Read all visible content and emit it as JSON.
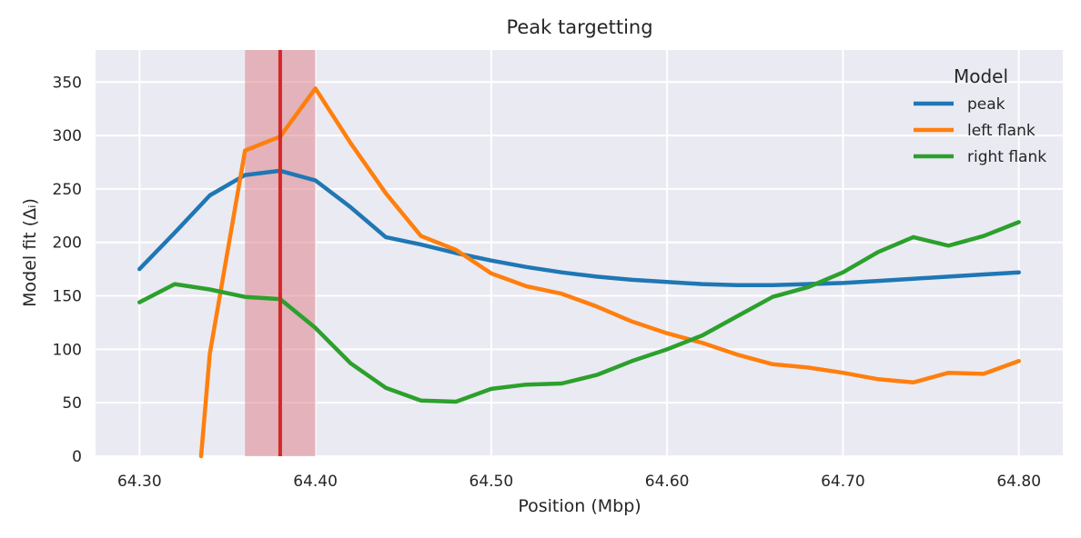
{
  "chart_data": {
    "type": "line",
    "title": "Peak targetting",
    "xlabel": "Position (Mbp)",
    "ylabel": "Model fit (Δᵢ)",
    "xlim": [
      64.275,
      64.825
    ],
    "ylim": [
      0,
      380
    ],
    "xticks": [
      64.3,
      64.4,
      64.5,
      64.6,
      64.7,
      64.8
    ],
    "xtick_labels": [
      "64.30",
      "64.40",
      "64.50",
      "64.60",
      "64.70",
      "64.80"
    ],
    "yticks": [
      0,
      50,
      100,
      150,
      200,
      250,
      300,
      350
    ],
    "ytick_labels": [
      "0",
      "50",
      "100",
      "150",
      "200",
      "250",
      "300",
      "350"
    ],
    "grid": true,
    "background": "#eaeaf2",
    "legend": {
      "title": "Model",
      "placement": "top-right"
    },
    "highlight": {
      "band": [
        64.36,
        64.4
      ],
      "band_color": "#dc7a82",
      "line_x": 64.38,
      "line_color": "#d62728"
    },
    "series": [
      {
        "name": "peak",
        "color": "#1f77b4",
        "x": [
          64.3,
          64.32,
          64.34,
          64.36,
          64.38,
          64.4,
          64.42,
          64.44,
          64.46,
          64.48,
          64.5,
          64.52,
          64.54,
          64.56,
          64.58,
          64.6,
          64.62,
          64.64,
          64.66,
          64.68,
          64.7,
          64.72,
          64.74,
          64.76,
          64.78,
          64.8
        ],
        "y": [
          175,
          209,
          244,
          263,
          267,
          258,
          233,
          205,
          198,
          190,
          183,
          177,
          172,
          168,
          165,
          163,
          161,
          160,
          160,
          161,
          162,
          164,
          166,
          168,
          170,
          172
        ]
      },
      {
        "name": "left flank",
        "color": "#ff7f0e",
        "x": [
          64.335,
          64.34,
          64.36,
          64.38,
          64.4,
          64.42,
          64.44,
          64.46,
          64.48,
          64.5,
          64.52,
          64.54,
          64.56,
          64.58,
          64.6,
          64.62,
          64.64,
          64.66,
          64.68,
          64.7,
          64.72,
          64.74,
          64.76,
          64.78,
          64.8
        ],
        "y": [
          0,
          96,
          286,
          299,
          344,
          293,
          246,
          206,
          193,
          171,
          159,
          152,
          140,
          126,
          115,
          106,
          95,
          86,
          83,
          78,
          72,
          69,
          78,
          77,
          89
        ]
      },
      {
        "name": "right flank",
        "color": "#2ca02c",
        "x": [
          64.3,
          64.32,
          64.34,
          64.36,
          64.38,
          64.4,
          64.42,
          64.44,
          64.46,
          64.48,
          64.5,
          64.52,
          64.54,
          64.56,
          64.58,
          64.6,
          64.62,
          64.64,
          64.66,
          64.68,
          64.7,
          64.72,
          64.74,
          64.76,
          64.78,
          64.8
        ],
        "y": [
          144,
          161,
          156,
          149,
          147,
          120,
          87,
          64,
          52,
          51,
          63,
          67,
          68,
          76,
          89,
          100,
          113,
          131,
          149,
          158,
          172,
          191,
          205,
          197,
          206,
          219
        ]
      }
    ]
  }
}
